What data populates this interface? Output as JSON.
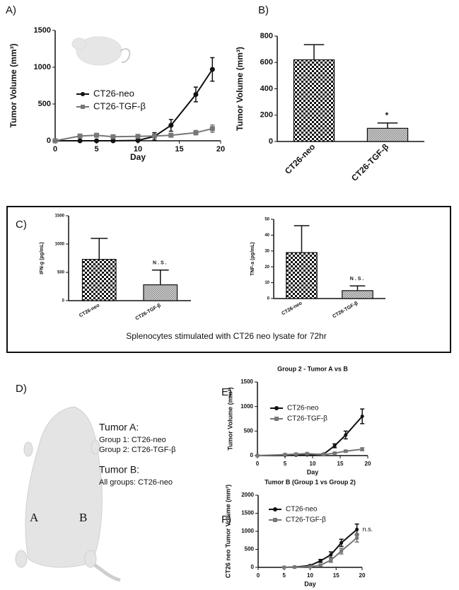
{
  "chart_data": [
    {
      "type": "line",
      "panel_label": "A)",
      "xlabel": "Day",
      "ylabel": "Tumor Volume (mm³)",
      "xlim": [
        0,
        20
      ],
      "xticks": [
        0,
        5,
        10,
        15,
        20
      ],
      "ylim": [
        0,
        1500
      ],
      "yticks": [
        0,
        500,
        1000,
        1500
      ],
      "x": [
        0,
        3,
        5,
        7,
        10,
        12,
        14,
        17,
        19
      ],
      "series": [
        {
          "name": "CT26-neo",
          "color": "#111111",
          "marker": "circle",
          "values": [
            0,
            0,
            0,
            0,
            5,
            60,
            210,
            630,
            970
          ],
          "errors": [
            0,
            0,
            0,
            0,
            10,
            50,
            80,
            100,
            160
          ]
        },
        {
          "name": "CT26-TGF-β",
          "color": "#777777",
          "marker": "square",
          "values": [
            0,
            65,
            75,
            55,
            60,
            65,
            75,
            110,
            165
          ],
          "errors": [
            0,
            20,
            20,
            15,
            15,
            15,
            20,
            30,
            50
          ]
        }
      ]
    },
    {
      "type": "bar",
      "panel_label": "B)",
      "ylabel": "Tumor Volume (mm³)",
      "ylim": [
        0,
        800
      ],
      "yticks": [
        0,
        200,
        400,
        600,
        800
      ],
      "categories": [
        "CT26-neo",
        "CT26-TGF-β"
      ],
      "values": [
        620,
        100
      ],
      "errors": [
        115,
        40
      ],
      "colors": [
        "#111111",
        "#888888"
      ],
      "annotation": "*"
    },
    {
      "type": "bar",
      "panel_label": "C)",
      "ylabel": "IFN-g (pg/mL)",
      "ylim": [
        0,
        1500
      ],
      "yticks": [
        0,
        500,
        1000,
        1500
      ],
      "categories": [
        "CT26-neo",
        "CT26-TGF-β"
      ],
      "values": [
        730,
        280
      ],
      "errors": [
        370,
        260
      ],
      "colors": [
        "#111111",
        "#888888"
      ],
      "annotation": "N.S.",
      "caption": "Splenocytes stimulated with CT26 neo lysate for 72hr"
    },
    {
      "type": "bar",
      "ylabel": "TNF-a (pg/mL)",
      "ylim": [
        0,
        50
      ],
      "yticks": [
        0,
        10,
        20,
        30,
        40,
        50
      ],
      "categories": [
        "CT26-neo",
        "CT26-TGF-β"
      ],
      "values": [
        29,
        5
      ],
      "errors": [
        17,
        3
      ],
      "colors": [
        "#111111",
        "#888888"
      ],
      "annotation": "N.S."
    },
    {
      "type": "line",
      "panel_label": "E)",
      "title": "Group 2 - Tumor  A vs  B",
      "xlabel": "Day",
      "ylabel": "Tumor Volume (mm³)",
      "xlim": [
        0,
        20
      ],
      "xticks": [
        0,
        5,
        10,
        15,
        20
      ],
      "ylim": [
        0,
        1500
      ],
      "yticks": [
        0,
        500,
        1000,
        1500
      ],
      "x": [
        0,
        5,
        7,
        9,
        12,
        14,
        16,
        19
      ],
      "series": [
        {
          "name": "CT26-neo",
          "color": "#111111",
          "marker": "circle",
          "values": [
            0,
            5,
            10,
            15,
            30,
            200,
            420,
            800
          ],
          "errors": [
            0,
            0,
            0,
            0,
            10,
            40,
            80,
            150
          ]
        },
        {
          "name": "CT26-TGF-β",
          "color": "#777777",
          "marker": "square",
          "values": [
            0,
            20,
            30,
            40,
            20,
            50,
            90,
            130
          ],
          "errors": [
            0,
            10,
            10,
            10,
            10,
            15,
            20,
            30
          ]
        }
      ]
    },
    {
      "type": "line",
      "panel_label": "F)",
      "title": "Tumor B (Group 1 vs Group 2)",
      "xlabel": "Day",
      "ylabel": "CT26 neo Tumor Volume (mm³)",
      "xlim": [
        0,
        20
      ],
      "xticks": [
        0,
        5,
        10,
        15,
        20
      ],
      "ylim": [
        0,
        2000
      ],
      "yticks": [
        0,
        500,
        1000,
        1500,
        2000
      ],
      "x": [
        5,
        7,
        10,
        12,
        14,
        16,
        19
      ],
      "annotation": "n.s.",
      "series": [
        {
          "name": "CT26-neo",
          "color": "#111111",
          "marker": "circle",
          "values": [
            0,
            10,
            50,
            180,
            350,
            680,
            1050
          ],
          "errors": [
            0,
            5,
            20,
            40,
            80,
            100,
            150
          ]
        },
        {
          "name": "CT26-TGF-β",
          "color": "#777777",
          "marker": "square",
          "values": [
            0,
            5,
            20,
            60,
            200,
            450,
            820
          ],
          "errors": [
            0,
            5,
            10,
            30,
            60,
            80,
            120
          ]
        }
      ]
    }
  ],
  "diagram": {
    "panel_label": "D)",
    "tumor_a": "Tumor A:",
    "group1": "Group 1: CT26-neo",
    "group2": "Group 2: CT26-TGF-β",
    "tumor_b": "Tumor B:",
    "all_groups": "All groups: CT26-neo",
    "site_a": "A",
    "site_b": "B"
  }
}
